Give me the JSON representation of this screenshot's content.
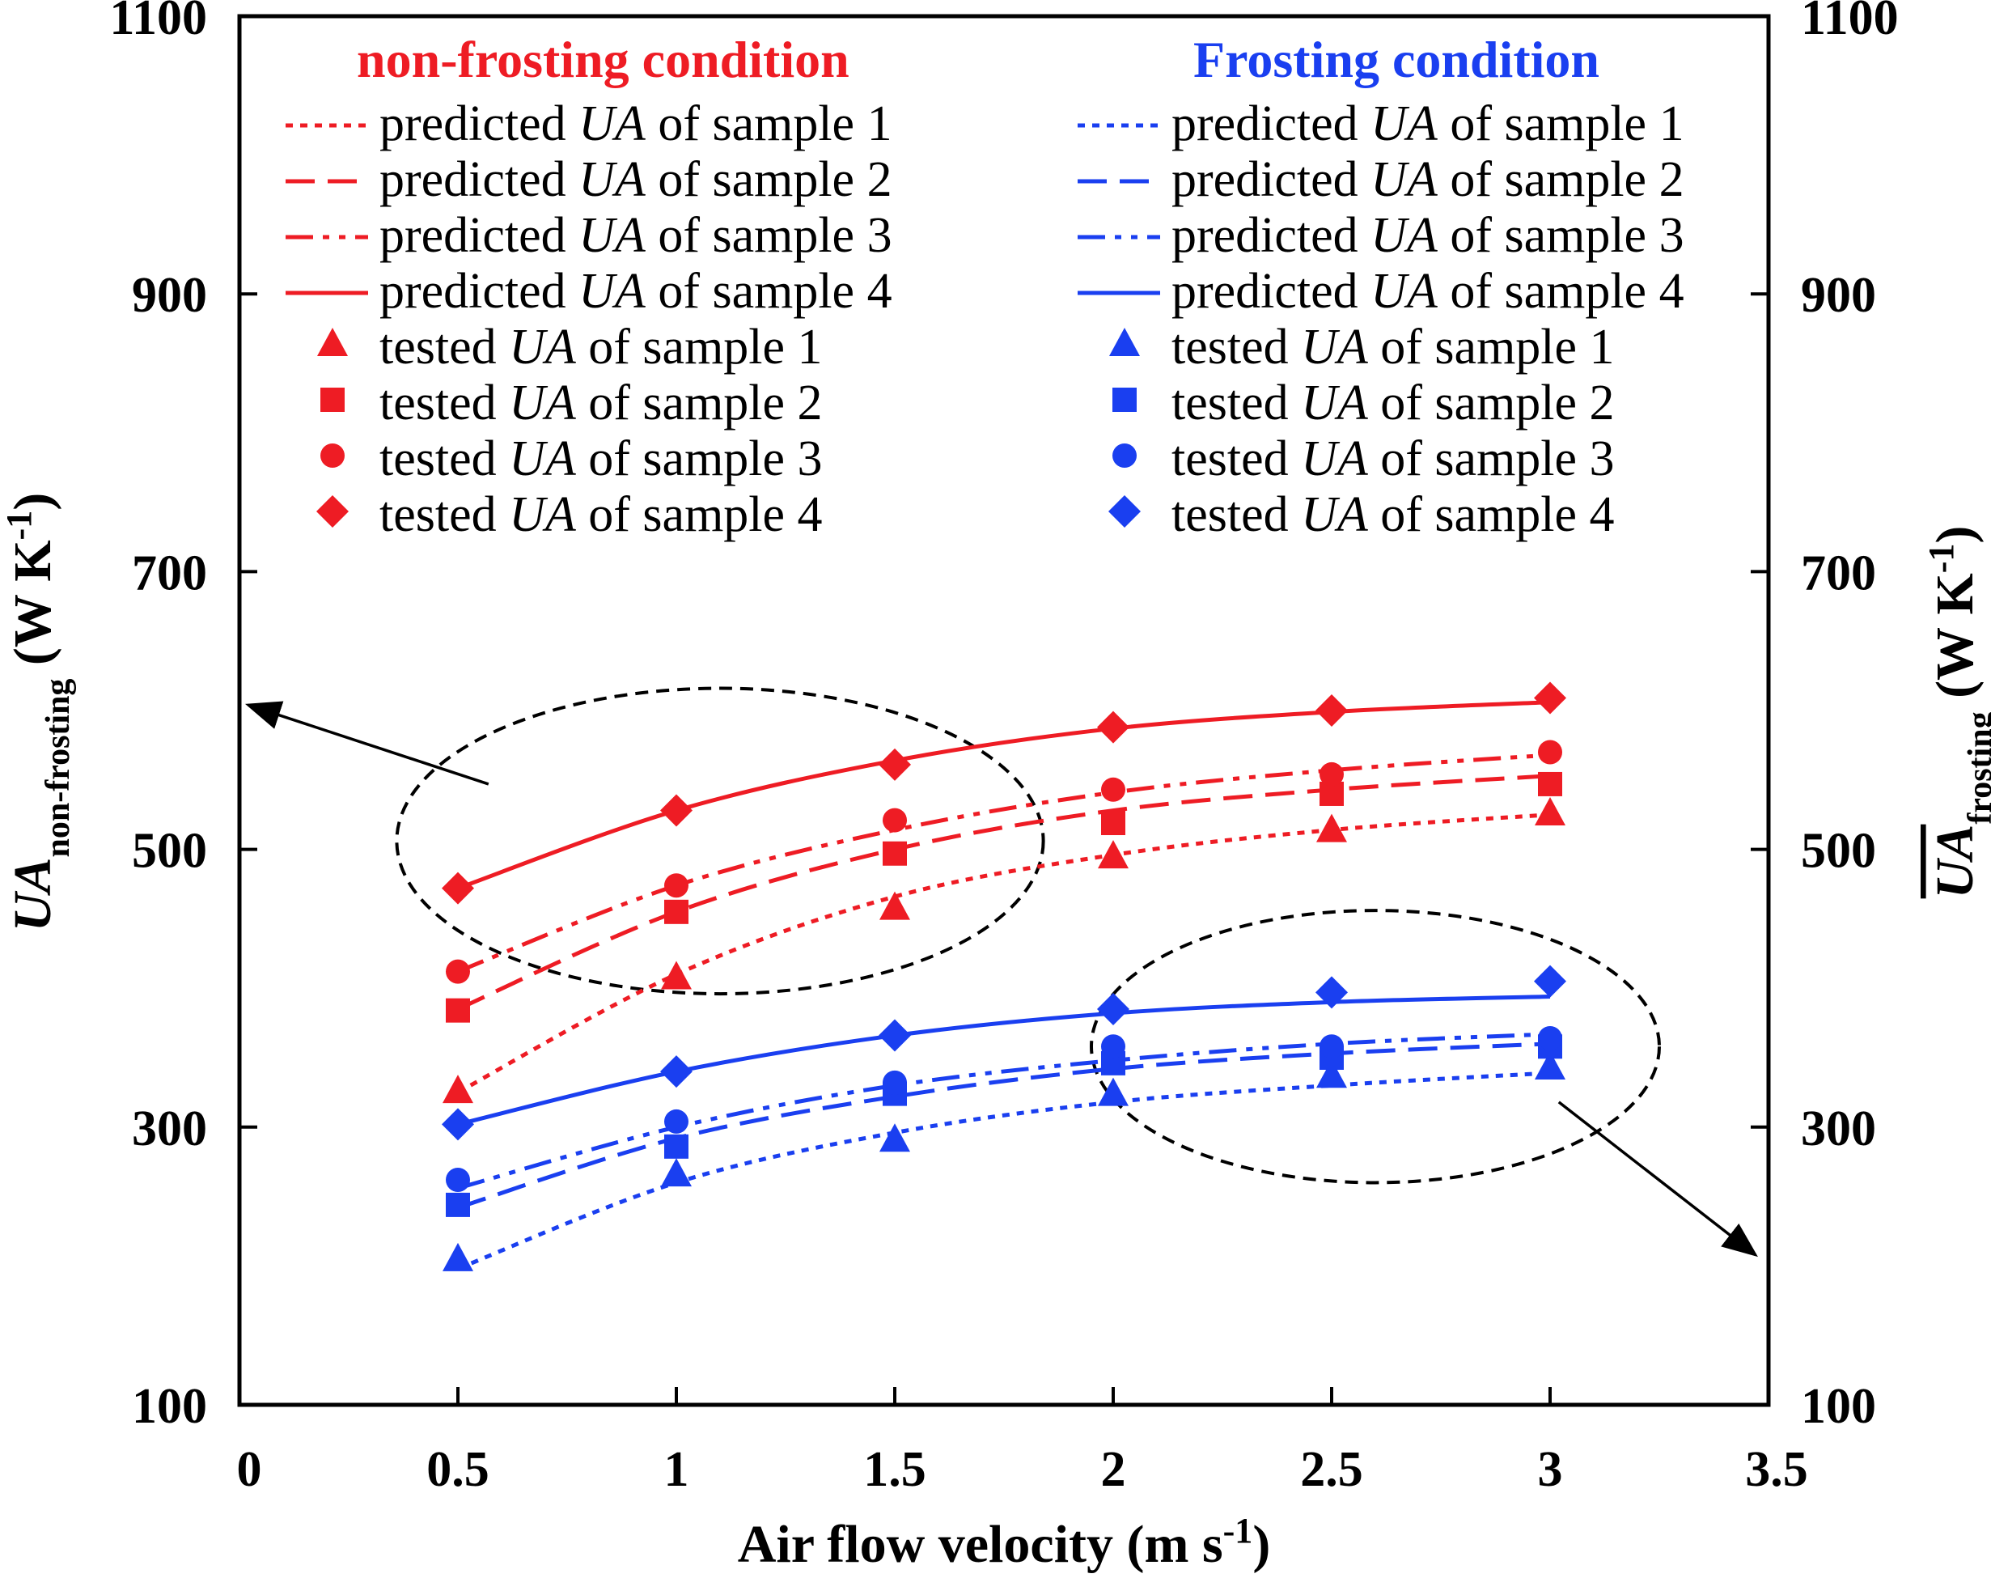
{
  "chart_data": {
    "type": "line",
    "xlabel": "Air flow velocity (m s",
    "xlabel_sup": "-1",
    "xlabel_end": ")",
    "ylabel_left": {
      "main": "UA",
      "sub": "non-frosting",
      "unit": " (W K",
      "unit_sup": "-1",
      "unit_end": ")"
    },
    "ylabel_right": {
      "main": "UA",
      "sub": "frosting",
      "unit": " (W K",
      "unit_sup": "-1",
      "unit_end": ")"
    },
    "xlim": [
      0,
      3.5
    ],
    "ylim": [
      100,
      1100
    ],
    "x_ticks": [
      "0",
      "0.5",
      "1",
      "1.5",
      "2",
      "2.5",
      "3",
      "3.5"
    ],
    "x_tick_values": [
      0,
      0.5,
      1,
      1.5,
      2,
      2.5,
      3,
      3.5
    ],
    "y_ticks": [
      "100",
      "300",
      "500",
      "700",
      "900",
      "1100"
    ],
    "y_tick_values": [
      100,
      300,
      500,
      700,
      900,
      1100
    ],
    "x": [
      0.5,
      1,
      1.5,
      2,
      2.5,
      3
    ],
    "colors": {
      "red": "#ee1c24",
      "blue": "#1a3ff0",
      "ellipse": "#000000"
    },
    "legend": {
      "red_title": "non-frosting condition",
      "blue_title": "Frosting condition",
      "predicted_prefix": "predicted ",
      "tested_prefix": "tested ",
      "ua": "UA",
      "suffixes": [
        " of sample 1",
        " of sample 2",
        " of sample 3",
        " of sample 4"
      ]
    },
    "series": [
      {
        "group": "non-frosting",
        "kind": "predicted",
        "sample": 1,
        "color": "#ee1c24",
        "dash": "dotted",
        "values": [
          325,
          410,
          466,
          496,
          514,
          525
        ]
      },
      {
        "group": "non-frosting",
        "kind": "predicted",
        "sample": 2,
        "color": "#ee1c24",
        "dash": "dashed",
        "values": [
          385,
          455,
          500,
          528,
          543,
          553
        ]
      },
      {
        "group": "non-frosting",
        "kind": "predicted",
        "sample": 3,
        "color": "#ee1c24",
        "dash": "dashdotdot",
        "values": [
          412,
          474,
          514,
          541,
          557,
          568
        ]
      },
      {
        "group": "non-frosting",
        "kind": "predicted",
        "sample": 4,
        "color": "#ee1c24",
        "dash": "solid",
        "values": [
          472,
          528,
          564,
          587,
          599,
          606
        ]
      },
      {
        "group": "non-frosting",
        "kind": "tested",
        "sample": 1,
        "color": "#ee1c24",
        "marker": "triangle",
        "values": [
          326,
          408,
          458,
          495,
          514,
          526
        ]
      },
      {
        "group": "non-frosting",
        "kind": "tested",
        "sample": 2,
        "color": "#ee1c24",
        "marker": "square",
        "values": [
          384,
          455,
          497,
          519,
          540,
          547
        ]
      },
      {
        "group": "non-frosting",
        "kind": "tested",
        "sample": 3,
        "color": "#ee1c24",
        "marker": "circle",
        "values": [
          412,
          474,
          521,
          543,
          554,
          570
        ]
      },
      {
        "group": "non-frosting",
        "kind": "tested",
        "sample": 4,
        "color": "#ee1c24",
        "marker": "diamond",
        "values": [
          472,
          528,
          561,
          588,
          600,
          609
        ]
      },
      {
        "group": "frosting",
        "kind": "predicted",
        "sample": 1,
        "color": "#1a3ff0",
        "dash": "dotted",
        "values": [
          198,
          260,
          296,
          318,
          330,
          339
        ]
      },
      {
        "group": "frosting",
        "kind": "predicted",
        "sample": 2,
        "color": "#1a3ff0",
        "dash": "dashed",
        "values": [
          242,
          292,
          322,
          342,
          353,
          360
        ]
      },
      {
        "group": "frosting",
        "kind": "predicted",
        "sample": 3,
        "color": "#1a3ff0",
        "dash": "dashdotdot",
        "values": [
          256,
          300,
          330,
          348,
          360,
          367
        ]
      },
      {
        "group": "frosting",
        "kind": "predicted",
        "sample": 4,
        "color": "#1a3ff0",
        "dash": "solid",
        "values": [
          302,
          340,
          366,
          382,
          390,
          394
        ]
      },
      {
        "group": "frosting",
        "kind": "tested",
        "sample": 1,
        "color": "#1a3ff0",
        "marker": "triangle",
        "values": [
          205,
          266,
          291,
          324,
          337,
          343
        ]
      },
      {
        "group": "frosting",
        "kind": "tested",
        "sample": 2,
        "color": "#1a3ff0",
        "marker": "square",
        "values": [
          244,
          286,
          324,
          346,
          350,
          358
        ]
      },
      {
        "group": "frosting",
        "kind": "tested",
        "sample": 3,
        "color": "#1a3ff0",
        "marker": "circle",
        "values": [
          262,
          304,
          332,
          358,
          358,
          364
        ]
      },
      {
        "group": "frosting",
        "kind": "tested",
        "sample": 4,
        "color": "#1a3ff0",
        "marker": "diamond",
        "values": [
          302,
          340,
          366,
          385,
          397,
          405
        ]
      }
    ],
    "annotations": [
      {
        "type": "ellipse",
        "cx": 1.1,
        "cy": 506,
        "rx": 0.74,
        "ry": 110
      },
      {
        "type": "ellipse",
        "cx": 2.6,
        "cy": 358,
        "rx": 0.65,
        "ry": 98
      },
      {
        "type": "arrow",
        "from": [
          0.57,
          547
        ],
        "to": [
          0.02,
          604
        ]
      },
      {
        "type": "arrow",
        "from": [
          3.02,
          318
        ],
        "to": [
          3.47,
          208
        ]
      }
    ],
    "grid": false,
    "legend_placement": "top"
  }
}
